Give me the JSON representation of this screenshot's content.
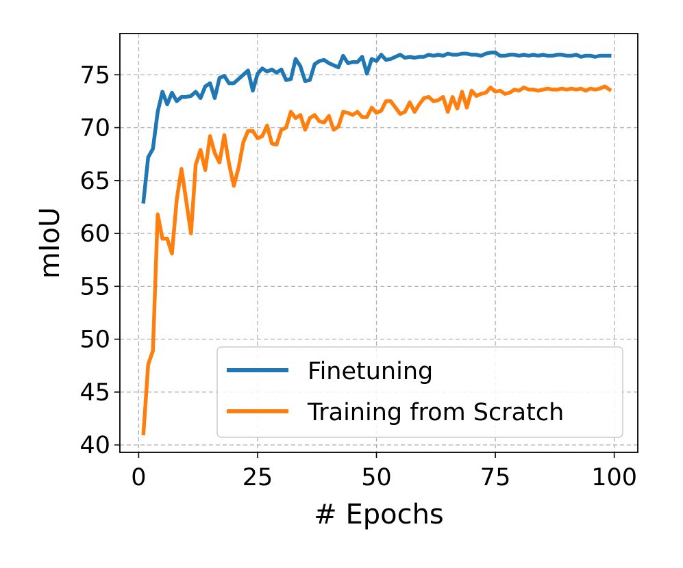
{
  "chart_data": {
    "type": "line",
    "title": "",
    "xlabel": "# Epochs",
    "ylabel": "mIoU",
    "xlim": [
      -3.95,
      104.95
    ],
    "ylim": [
      39.3,
      78.9
    ],
    "xticks": [
      0,
      25,
      50,
      75,
      100
    ],
    "yticks": [
      40,
      45,
      50,
      55,
      60,
      65,
      70,
      75
    ],
    "grid": true,
    "legend_position": "lower-right",
    "series": [
      {
        "name": "Finetuning",
        "color": "#1f77b4",
        "x": [
          1,
          2,
          3,
          4,
          5,
          6,
          7,
          8,
          9,
          10,
          11,
          12,
          13,
          14,
          15,
          16,
          17,
          18,
          19,
          20,
          21,
          22,
          23,
          24,
          25,
          26,
          27,
          28,
          29,
          30,
          31,
          32,
          33,
          34,
          35,
          36,
          37,
          38,
          39,
          40,
          41,
          42,
          43,
          44,
          45,
          46,
          47,
          48,
          49,
          50,
          51,
          52,
          53,
          54,
          55,
          56,
          57,
          58,
          59,
          60,
          61,
          62,
          63,
          64,
          65,
          66,
          67,
          68,
          69,
          70,
          71,
          72,
          73,
          74,
          75,
          76,
          77,
          78,
          79,
          80,
          81,
          82,
          83,
          84,
          85,
          86,
          87,
          88,
          89,
          90,
          91,
          92,
          93,
          94,
          95,
          96,
          97,
          98,
          99
        ],
        "y": [
          63.0,
          67.2,
          68.0,
          71.5,
          73.4,
          72.2,
          73.3,
          72.5,
          72.9,
          72.9,
          73.0,
          73.4,
          72.8,
          73.9,
          74.2,
          72.8,
          74.7,
          74.9,
          74.2,
          74.2,
          74.6,
          75.0,
          75.4,
          73.5,
          75.1,
          75.6,
          75.3,
          75.5,
          75.2,
          75.5,
          74.5,
          74.6,
          76.5,
          75.8,
          74.4,
          74.5,
          76.0,
          76.3,
          76.4,
          76.1,
          75.9,
          75.7,
          76.8,
          76.1,
          76.2,
          76.2,
          76.7,
          75.1,
          76.5,
          76.3,
          76.9,
          76.4,
          76.5,
          76.7,
          76.9,
          76.6,
          76.7,
          76.6,
          76.7,
          76.7,
          76.9,
          76.8,
          76.9,
          76.8,
          77.0,
          76.9,
          76.9,
          77.0,
          77.0,
          76.9,
          76.9,
          76.8,
          77.0,
          77.1,
          77.1,
          76.8,
          76.8,
          76.9,
          76.9,
          76.8,
          76.9,
          76.8,
          76.9,
          76.8,
          76.9,
          76.8,
          76.8,
          76.9,
          76.9,
          76.8,
          76.8,
          76.9,
          76.7,
          76.8,
          76.8,
          76.7,
          76.8,
          76.8,
          76.8
        ]
      },
      {
        "name": "Training from Scratch",
        "color": "#ff7f0e",
        "x": [
          1,
          2,
          3,
          4,
          5,
          6,
          7,
          8,
          9,
          10,
          11,
          12,
          13,
          14,
          15,
          16,
          17,
          18,
          19,
          20,
          21,
          22,
          23,
          24,
          25,
          26,
          27,
          28,
          29,
          30,
          31,
          32,
          33,
          34,
          35,
          36,
          37,
          38,
          39,
          40,
          41,
          42,
          43,
          44,
          45,
          46,
          47,
          48,
          49,
          50,
          51,
          52,
          53,
          54,
          55,
          56,
          57,
          58,
          59,
          60,
          61,
          62,
          63,
          64,
          65,
          66,
          67,
          68,
          69,
          70,
          71,
          72,
          73,
          74,
          75,
          76,
          77,
          78,
          79,
          80,
          81,
          82,
          83,
          84,
          85,
          86,
          87,
          88,
          89,
          90,
          91,
          92,
          93,
          94,
          95,
          96,
          97,
          98,
          99
        ],
        "y": [
          41.1,
          47.6,
          48.9,
          61.8,
          59.5,
          59.5,
          58.1,
          63.2,
          66.1,
          63.1,
          60.0,
          66.5,
          67.9,
          66.0,
          69.2,
          67.6,
          66.7,
          69.3,
          66.6,
          64.5,
          66.2,
          68.6,
          69.7,
          69.7,
          69.0,
          69.2,
          70.2,
          68.5,
          68.4,
          69.8,
          70.0,
          71.5,
          70.9,
          71.2,
          69.8,
          70.9,
          71.2,
          70.6,
          70.5,
          71.1,
          69.8,
          70.1,
          71.5,
          71.4,
          71.2,
          71.5,
          71.0,
          71.0,
          71.9,
          71.4,
          71.6,
          72.5,
          72.5,
          71.9,
          71.3,
          71.5,
          72.4,
          71.5,
          72.2,
          72.8,
          72.9,
          72.5,
          72.6,
          72.9,
          71.5,
          72.9,
          71.8,
          73.4,
          71.9,
          73.5,
          73.0,
          73.2,
          73.3,
          73.8,
          73.4,
          73.5,
          73.2,
          73.3,
          73.6,
          73.5,
          73.8,
          73.6,
          73.6,
          73.5,
          73.6,
          73.7,
          73.6,
          73.6,
          73.7,
          73.6,
          73.7,
          73.6,
          73.7,
          73.5,
          73.7,
          73.6,
          73.7,
          73.9,
          73.6
        ]
      }
    ]
  }
}
